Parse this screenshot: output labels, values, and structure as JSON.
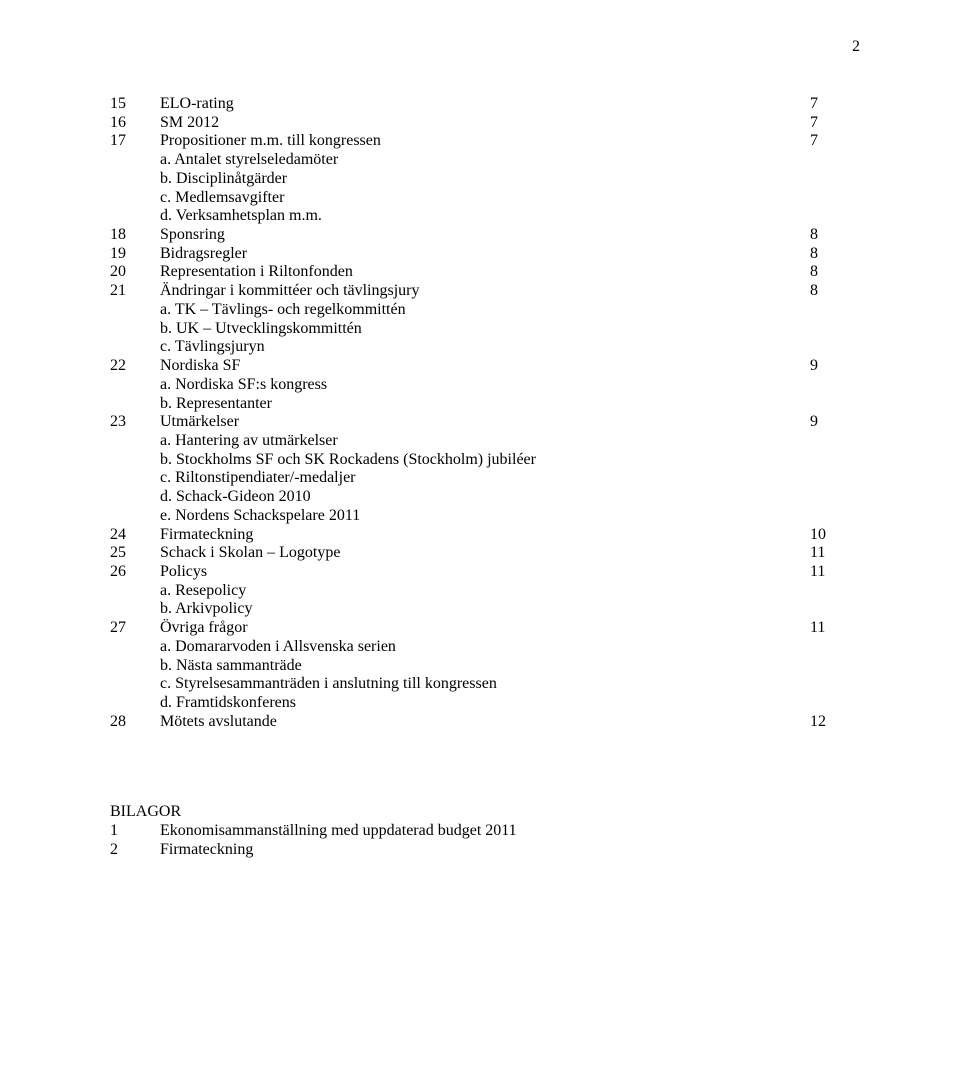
{
  "page_number": "2",
  "items": [
    {
      "type": "row",
      "num": "15",
      "label": "ELO-rating",
      "page": "7"
    },
    {
      "type": "row",
      "num": "16",
      "label": "SM 2012",
      "page": "7"
    },
    {
      "type": "row",
      "num": "17",
      "label": "Propositioner m.m. till kongressen",
      "page": "7"
    },
    {
      "type": "sub",
      "text": "a.   Antalet styrelseledamöter"
    },
    {
      "type": "sub",
      "text": "b.   Disciplinåtgärder"
    },
    {
      "type": "sub",
      "text": "c.   Medlemsavgifter"
    },
    {
      "type": "sub",
      "text": "d.   Verksamhetsplan m.m."
    },
    {
      "type": "row",
      "num": "18",
      "label": "Sponsring",
      "page": "8"
    },
    {
      "type": "row",
      "num": "19",
      "label": "Bidragsregler",
      "page": "8"
    },
    {
      "type": "row",
      "num": "20",
      "label": "Representation i Riltonfonden",
      "page": "8"
    },
    {
      "type": "row",
      "num": "21",
      "label": "Ändringar i kommittéer och tävlingsjury",
      "page": "8"
    },
    {
      "type": "sub",
      "text": "a.   TK – Tävlings- och regelkommittén"
    },
    {
      "type": "sub",
      "text": "b.   UK – Utvecklingskommittén"
    },
    {
      "type": "sub",
      "text": "c.   Tävlingsjuryn"
    },
    {
      "type": "row",
      "num": "22",
      "label": "Nordiska SF",
      "page": "9"
    },
    {
      "type": "sub",
      "text": "a.   Nordiska SF:s kongress"
    },
    {
      "type": "sub",
      "text": "b.   Representanter"
    },
    {
      "type": "row",
      "num": "23",
      "label": "Utmärkelser",
      "page": "9"
    },
    {
      "type": "sub",
      "text": "a.   Hantering av utmärkelser"
    },
    {
      "type": "sub",
      "text": "b.   Stockholms SF och SK Rockadens (Stockholm) jubiléer"
    },
    {
      "type": "sub",
      "text": "c.   Riltonstipendiater/-medaljer"
    },
    {
      "type": "sub",
      "text": "d.   Schack-Gideon 2010"
    },
    {
      "type": "sub",
      "text": "e.   Nordens Schackspelare 2011"
    },
    {
      "type": "row",
      "num": "24",
      "label": "Firmateckning",
      "page": "10"
    },
    {
      "type": "row",
      "num": "25",
      "label": "Schack i Skolan – Logotype",
      "page": "11"
    },
    {
      "type": "row",
      "num": "26",
      "label": "Policys",
      "page": "11"
    },
    {
      "type": "sub",
      "text": "a.   Resepolicy"
    },
    {
      "type": "sub",
      "text": "b.   Arkivpolicy"
    },
    {
      "type": "row",
      "num": "27",
      "label": "Övriga frågor",
      "page": "11"
    },
    {
      "type": "sub",
      "text": "a.   Domararvoden i Allsvenska serien"
    },
    {
      "type": "sub",
      "text": "b.   Nästa sammanträde"
    },
    {
      "type": "sub",
      "text": "c.   Styrelsesammanträden i anslutning till kongressen"
    },
    {
      "type": "sub",
      "text": "d.   Framtidskonferens"
    },
    {
      "type": "row",
      "num": "28",
      "label": "Mötets avslutande",
      "page": "12"
    }
  ],
  "bilagor": {
    "heading": "BILAGOR",
    "rows": [
      {
        "num": "1",
        "label": "Ekonomisammanställning med uppdaterad budget 2011"
      },
      {
        "num": "2",
        "label": "Firmateckning"
      }
    ]
  }
}
